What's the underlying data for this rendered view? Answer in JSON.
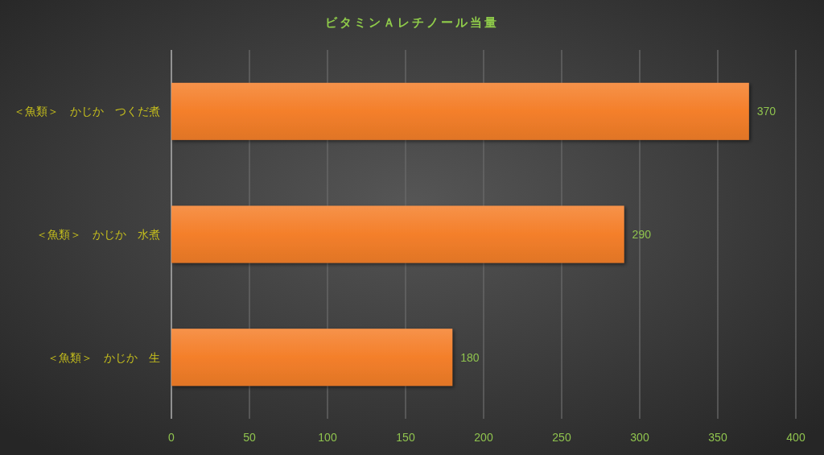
{
  "chart_data": {
    "type": "bar",
    "orientation": "horizontal",
    "title": "ビタミンＡレチノール当量",
    "categories": [
      "＜魚類＞　かじか　つくだ煮",
      "＜魚類＞　かじか　水煮",
      "＜魚類＞　かじか　生"
    ],
    "values": [
      370,
      290,
      180
    ],
    "color": "#f47f2a",
    "xlim": [
      0,
      400
    ],
    "xticks": [
      0,
      50,
      100,
      150,
      200,
      250,
      300,
      350,
      400
    ],
    "grid": "x",
    "data_labels": true
  }
}
